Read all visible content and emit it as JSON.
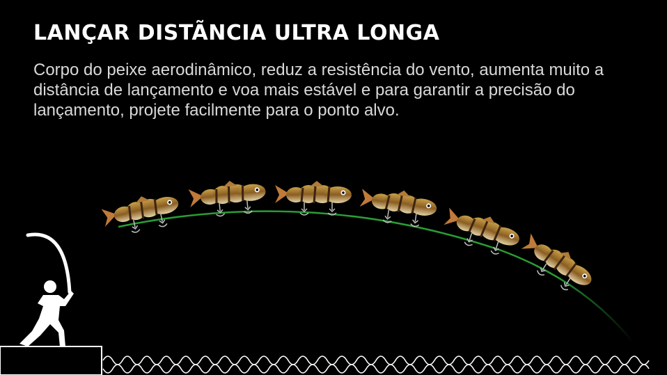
{
  "header": {
    "title": "LANÇAR DISTÃNCIA ULTRA LONGA",
    "description": "Corpo do peixe aerodinâmico, reduz a resistência do vento, aumenta muito a distância de lançamento e voa mais estável e para garantir a precisão do lançamento, projete facilmente para o ponto alvo."
  },
  "scene": {
    "background_color": "#000000",
    "trajectory_color": "#2fae3a",
    "lure_count": 6,
    "icons": [
      "angler-silhouette-icon",
      "fishing-rod-icon",
      "fishing-lure-icon",
      "water-wave-icon",
      "dock-platform-icon"
    ]
  }
}
